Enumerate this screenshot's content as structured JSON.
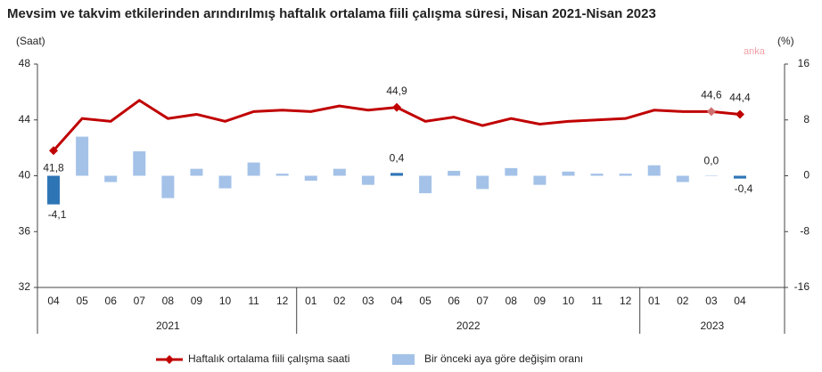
{
  "chart_data": {
    "type": "bar-line",
    "title": "Mevsim ve takvim etkilerinden arındırılmış haftalık ortalama fiili çalışma süresi, Nisan 2021-Nisan 2023",
    "y_label": "(Saat)",
    "y2_label": "(%)",
    "watermark": "anka",
    "groups": [
      {
        "label": "2021",
        "categories": [
          "04",
          "05",
          "06",
          "07",
          "08",
          "09",
          "10",
          "11",
          "12"
        ]
      },
      {
        "label": "2022",
        "categories": [
          "01",
          "02",
          "03",
          "04",
          "05",
          "06",
          "07",
          "08",
          "09",
          "10",
          "11",
          "12"
        ]
      },
      {
        "label": "2023",
        "categories": [
          "01",
          "02",
          "03",
          "04"
        ]
      }
    ],
    "ylim": [
      32,
      48
    ],
    "yticks": [
      32,
      36,
      40,
      44,
      48
    ],
    "y2lim": [
      -16,
      16
    ],
    "y2ticks": [
      -16,
      -8,
      0,
      8,
      16
    ],
    "series": [
      {
        "name": "Haftalık ortalama fiili çalışma saati",
        "type": "line",
        "color": "#c00000",
        "values": [
          41.8,
          44.1,
          43.9,
          45.4,
          44.1,
          44.4,
          43.9,
          44.6,
          44.7,
          44.6,
          45.0,
          44.7,
          44.9,
          43.9,
          44.2,
          43.6,
          44.1,
          43.7,
          43.9,
          44.0,
          44.1,
          44.7,
          44.6,
          44.6,
          44.4
        ],
        "value_labels": [
          "41,8",
          null,
          null,
          null,
          null,
          null,
          null,
          null,
          null,
          null,
          null,
          null,
          "44,9",
          null,
          null,
          null,
          null,
          null,
          null,
          null,
          null,
          null,
          null,
          "44,6",
          "44,4"
        ],
        "marker_colors": [
          "#c00000",
          null,
          null,
          null,
          null,
          null,
          null,
          null,
          null,
          null,
          null,
          null,
          "#c00000",
          null,
          null,
          null,
          null,
          null,
          null,
          null,
          null,
          null,
          null,
          "#d07070",
          "#c00000"
        ]
      },
      {
        "name": "Bir önceki aya göre değişim oranı",
        "type": "bar",
        "axis": "y2",
        "color": "#a4c2e8",
        "values": [
          -4.1,
          5.6,
          -0.9,
          3.5,
          -3.2,
          1.0,
          -1.8,
          1.9,
          0.3,
          -0.7,
          1.0,
          -1.3,
          0.4,
          -2.5,
          0.7,
          -1.9,
          1.1,
          -1.3,
          0.6,
          0.3,
          0.3,
          1.5,
          -0.9,
          0.0,
          -0.4
        ],
        "value_labels": [
          "-4,1",
          null,
          null,
          null,
          null,
          null,
          null,
          null,
          null,
          null,
          null,
          null,
          "0,4",
          null,
          null,
          null,
          null,
          null,
          null,
          null,
          null,
          null,
          null,
          "0,0",
          "-0,4"
        ],
        "colors": [
          "#2e75b6",
          null,
          null,
          null,
          null,
          null,
          null,
          null,
          null,
          null,
          null,
          null,
          "#2e75b6",
          null,
          null,
          null,
          null,
          null,
          null,
          null,
          null,
          null,
          null,
          null,
          "#2e75b6"
        ]
      }
    ]
  }
}
